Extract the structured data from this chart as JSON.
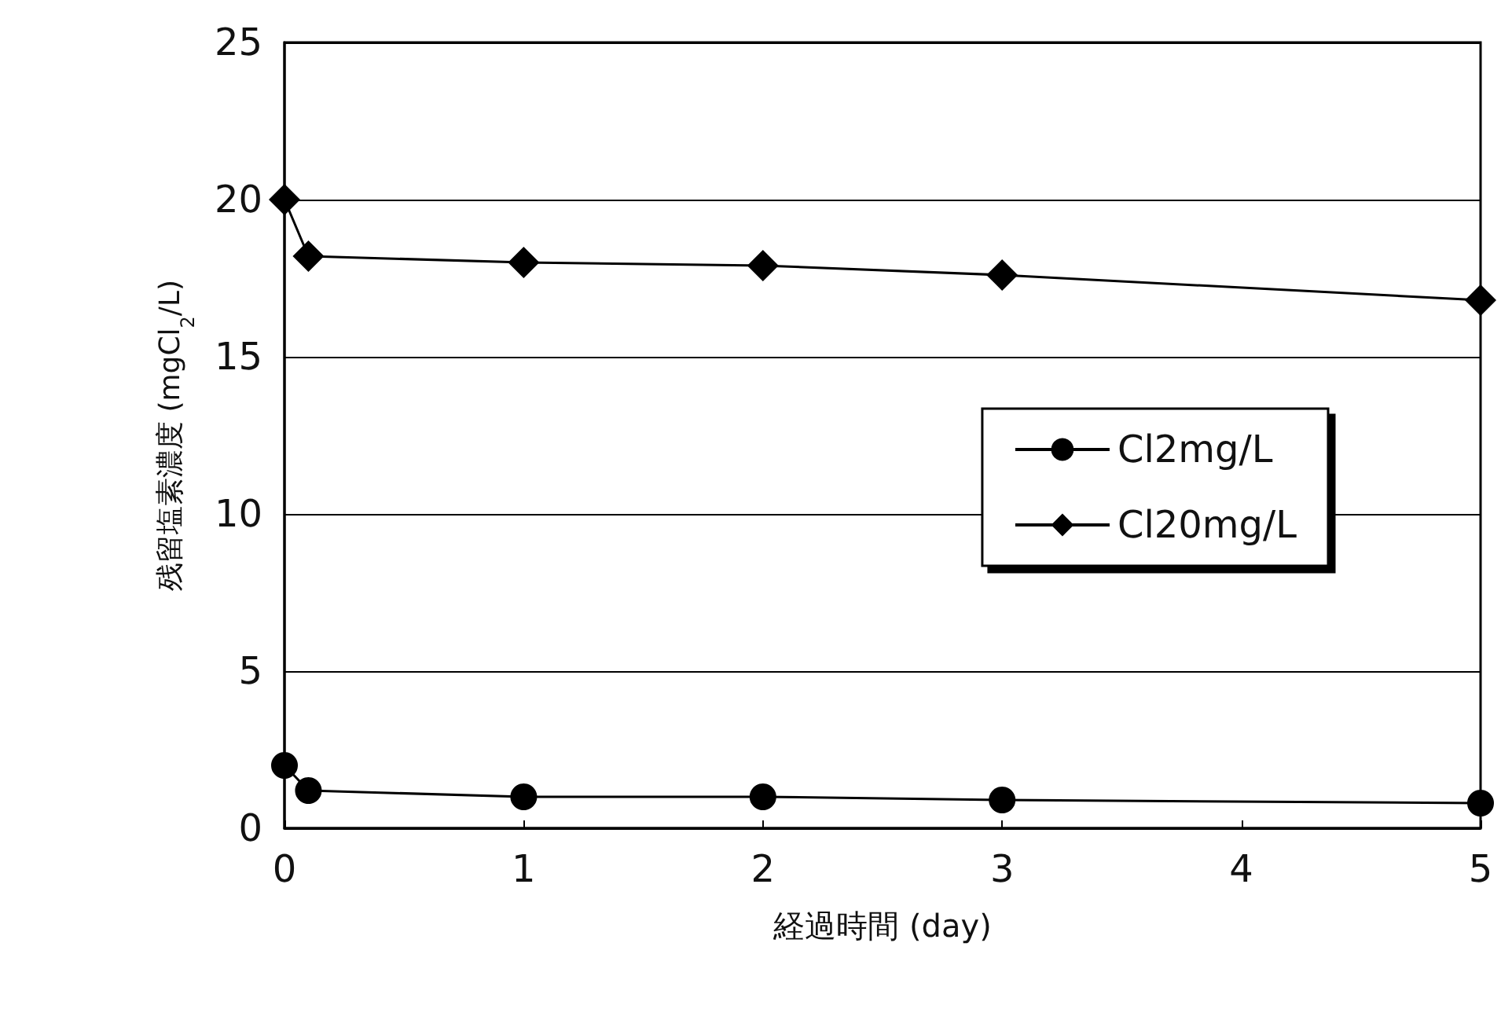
{
  "chart_data": {
    "type": "line",
    "xlabel": "経過時間 (day)",
    "ylabel": "残留塩素濃度 (mgCl$_{2}$/L)",
    "x": [
      0,
      0.1,
      1,
      2,
      3,
      5
    ],
    "series": [
      {
        "name": "Cl2mg/L",
        "color": "#000000",
        "marker": "circle",
        "values": [
          2.0,
          1.2,
          1.0,
          1.0,
          0.9,
          0.8
        ]
      },
      {
        "name": "Cl20mg/L",
        "color": "#000000",
        "marker": "diamond",
        "values": [
          20.0,
          18.2,
          18.0,
          17.9,
          17.6,
          16.8
        ]
      }
    ],
    "xlim": [
      0,
      5
    ],
    "xticks": [
      0,
      1,
      2,
      3,
      4,
      5
    ],
    "ylim": [
      0,
      25
    ],
    "yticks": [
      0,
      5,
      10,
      15,
      20,
      25
    ],
    "grid": "y",
    "legend": "right",
    "line_style": "solid"
  }
}
